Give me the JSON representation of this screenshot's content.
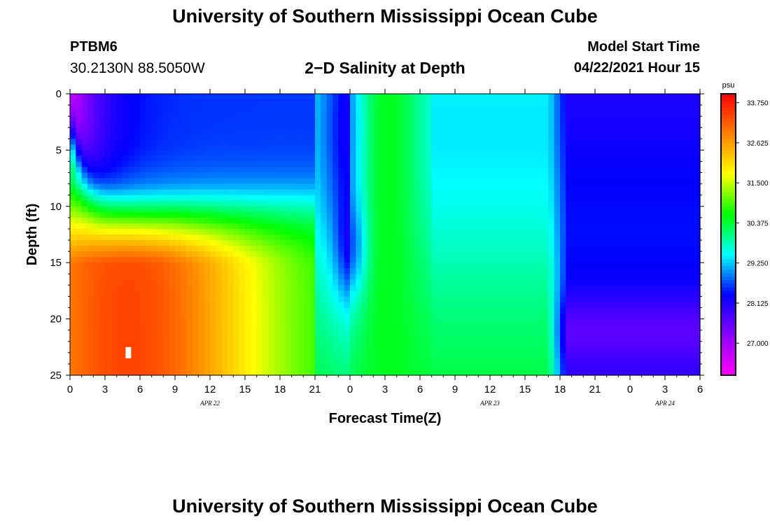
{
  "header": {
    "title": "University of Southern Mississippi Ocean Cube",
    "station_id": "PTBM6",
    "station_coords": "30.2130N  88.5050W",
    "plot_title": "2−D Salinity at Depth",
    "model_label": "Model Start Time",
    "model_time": "04/22/2021 Hour 15"
  },
  "footer": {
    "title": "University of Southern Mississippi Ocean Cube"
  },
  "chart_data": {
    "type": "heatmap",
    "title": "2-D Salinity at Depth",
    "xlabel": "Forecast Time(Z)",
    "ylabel": "Depth (ft)",
    "x_range_hours": [
      0,
      54
    ],
    "y_range_ft": [
      0,
      25
    ],
    "y_ticks": [
      "0",
      "5",
      "10",
      "15",
      "20",
      "25"
    ],
    "x_tick_labels": [
      "0",
      "3",
      "6",
      "9",
      "12",
      "15",
      "18",
      "21",
      "0",
      "3",
      "6",
      "9",
      "12",
      "15",
      "18",
      "21",
      "0",
      "3",
      "6"
    ],
    "date_labels": [
      {
        "text": "APR  22",
        "hour": 12
      },
      {
        "text": "APR  23",
        "hour": 36
      },
      {
        "text": "APR  24",
        "hour": 51
      }
    ],
    "colorbar": {
      "unit": "psu",
      "range": [
        26.1,
        34.0
      ],
      "tick_values": [
        33.75,
        32.625,
        31.5,
        30.375,
        29.25,
        28.125,
        27.0
      ],
      "tick_labels": [
        "33.750",
        "32.625",
        "31.500",
        "30.375",
        "29.250",
        "28.125",
        "27.000"
      ],
      "colors": [
        "#ff00ff",
        "#8b00ff",
        "#0000ff",
        "#00ffff",
        "#00ff00",
        "#ffff00",
        "#ff8000",
        "#ff0000"
      ]
    },
    "marker": {
      "hour": 5,
      "depth_ft": 23,
      "color": "#ffffff"
    },
    "salinity_field_description": "fresher surface water (~26-29 psu) over saltier bottom water (~33 psu) early in the forecast; mixed ~30-31 psu mid period; fresher ~28 psu late"
  }
}
